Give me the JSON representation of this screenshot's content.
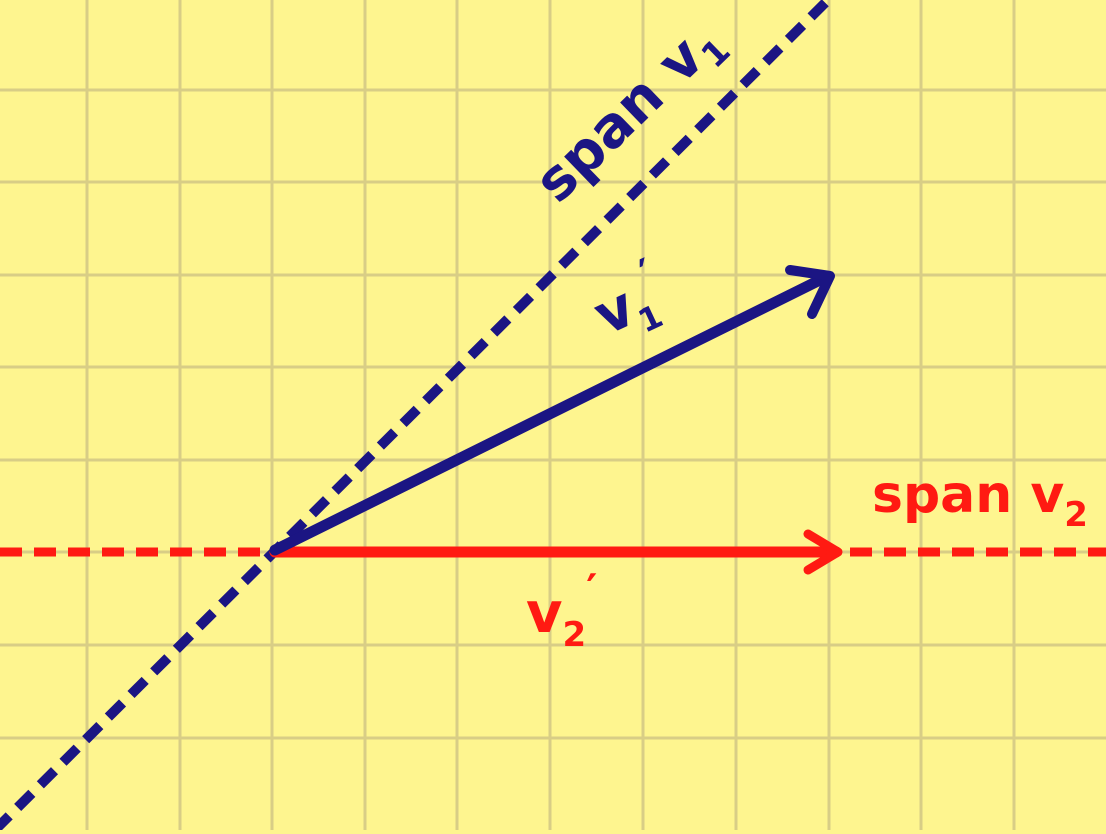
{
  "colors": {
    "background": "#fef58f",
    "grid": "#d8cd86",
    "vector1": "#1b1583",
    "vector2": "#ff1a12"
  },
  "labels": {
    "span_v1": {
      "text": "span v",
      "sub": "1"
    },
    "v1_prime": {
      "text": "v",
      "sub": "1",
      "prime": "′"
    },
    "span_v2": {
      "text": "span v",
      "sub": "2"
    },
    "v2_prime": {
      "text": "v",
      "sub": "2",
      "prime": "′"
    }
  }
}
